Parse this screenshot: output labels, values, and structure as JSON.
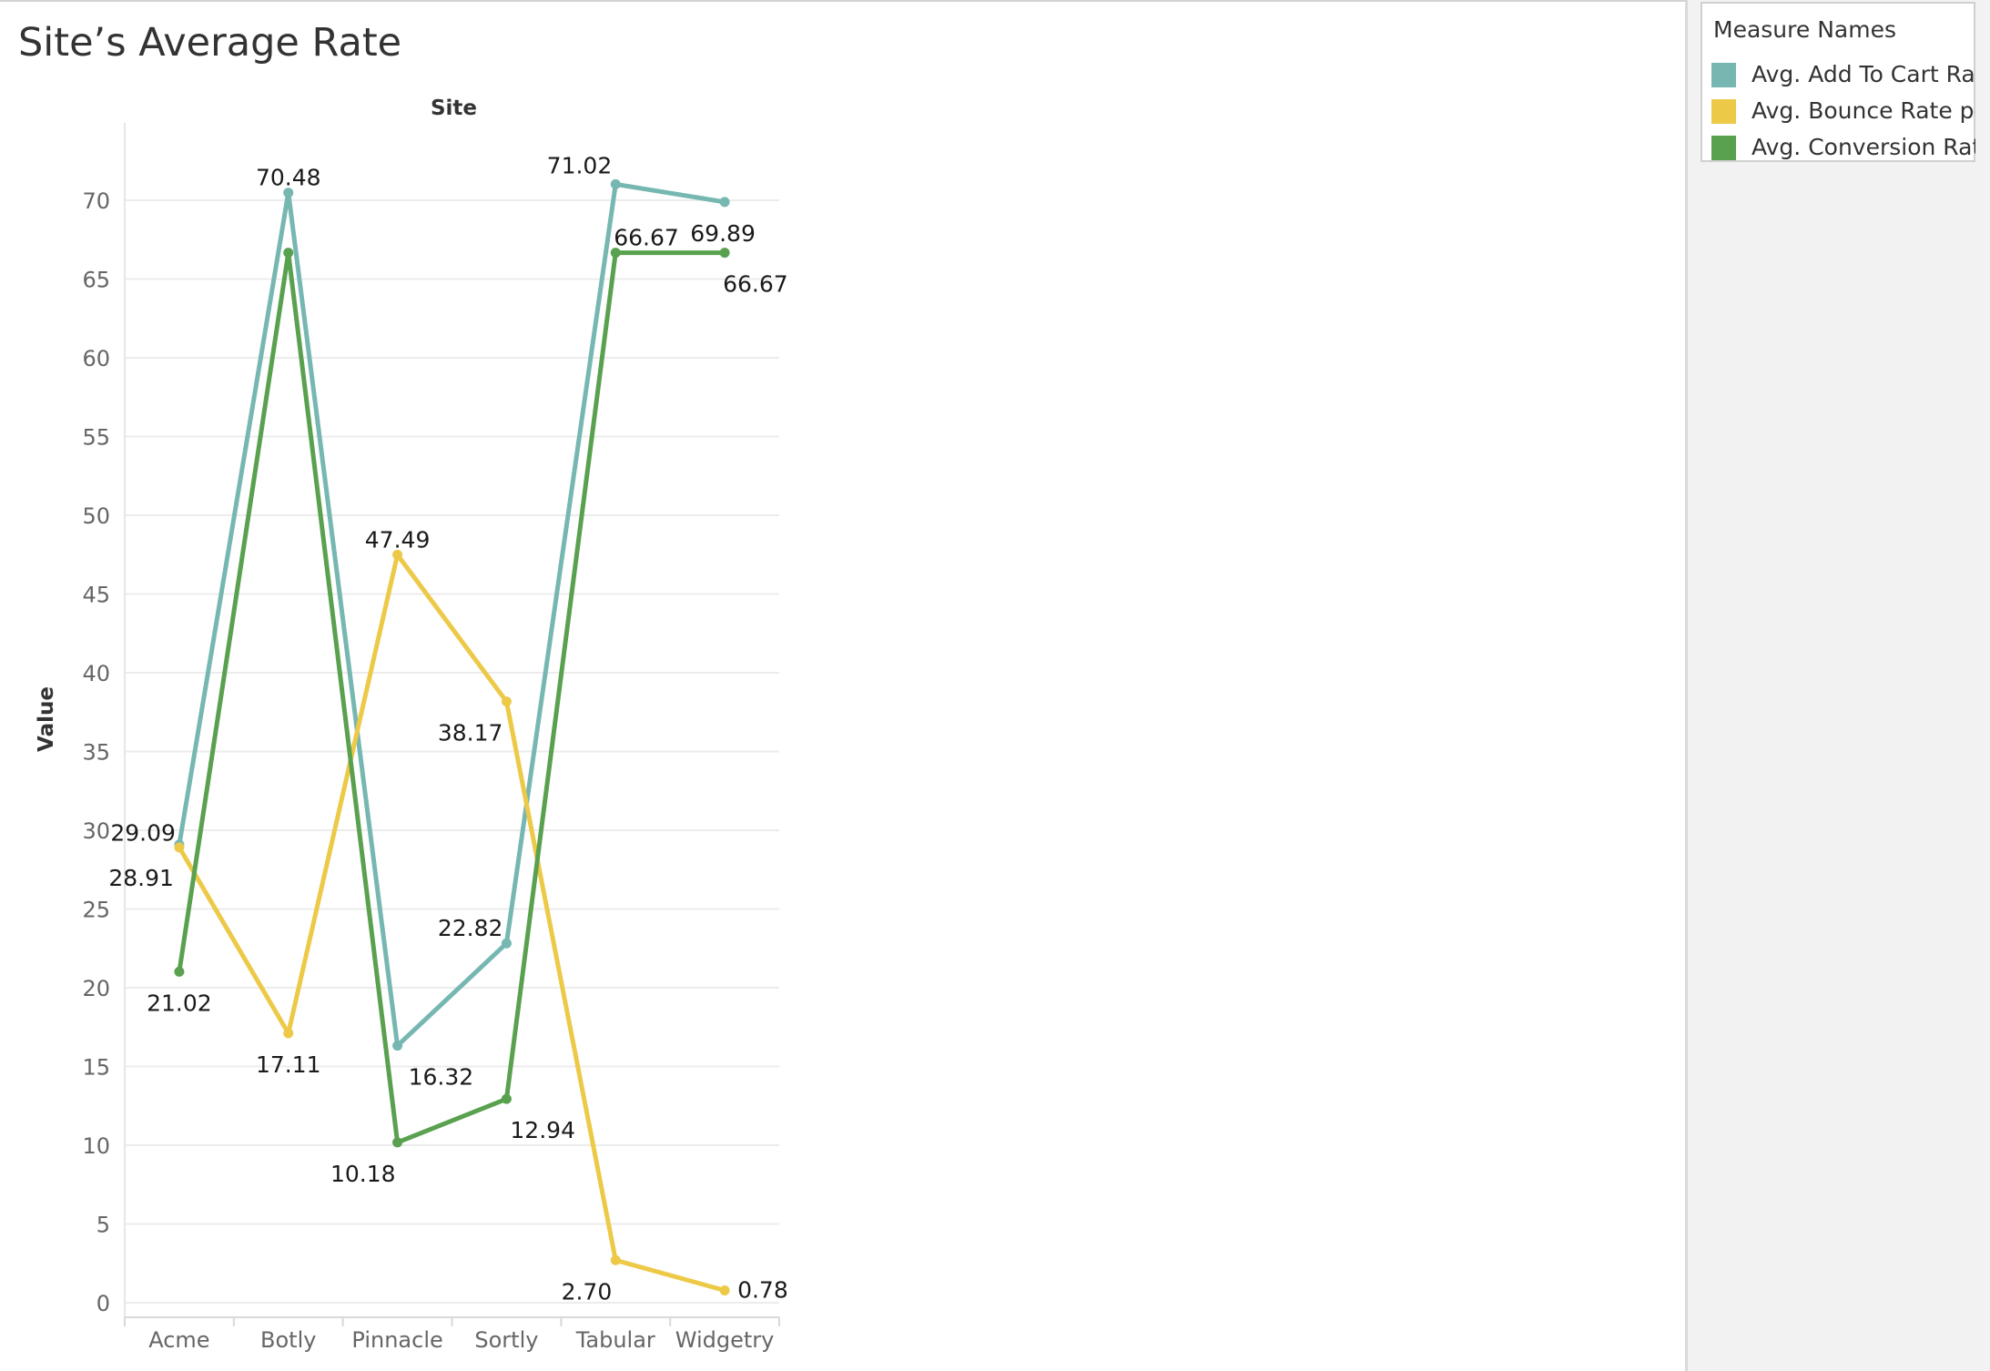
{
  "title": "Site’s Average Rate",
  "legend": {
    "title": "Measure Names",
    "items": [
      {
        "label": "Avg. Add To Cart Rat..",
        "color": "#76b7b2"
      },
      {
        "label": "Avg. Bounce Rate pe..",
        "color": "#edc948"
      },
      {
        "label": "Avg. Conversion Rat..",
        "color": "#59a14f"
      }
    ]
  },
  "chart_data": {
    "type": "line",
    "title": "Site’s Average Rate",
    "xlabel": "Site",
    "ylabel": "Value",
    "categories": [
      "Acme",
      "Botly",
      "Pinnacle",
      "Sortly",
      "Tabular",
      "Widgetry"
    ],
    "ylim": [
      0,
      73
    ],
    "yticks": [
      0,
      5,
      10,
      15,
      20,
      25,
      30,
      35,
      40,
      45,
      50,
      55,
      60,
      65,
      70
    ],
    "grid": true,
    "legend_position": "right",
    "series": [
      {
        "name": "Avg. Add To Cart Rat..",
        "color": "#76b7b2",
        "values": [
          29.09,
          70.48,
          16.32,
          22.82,
          71.02,
          69.89
        ],
        "labels": [
          "29.09",
          "70.48",
          "16.32",
          "22.82",
          "71.02",
          "69.89"
        ]
      },
      {
        "name": "Avg. Bounce Rate pe..",
        "color": "#edc948",
        "values": [
          28.91,
          17.11,
          47.49,
          38.17,
          2.7,
          0.78
        ],
        "labels": [
          "28.91",
          "17.11",
          "47.49",
          "38.17",
          "2.70",
          "0.78"
        ]
      },
      {
        "name": "Avg. Conversion Rat..",
        "color": "#59a14f",
        "values": [
          21.02,
          66.67,
          10.18,
          12.94,
          66.67,
          66.67
        ],
        "labels": [
          "21.02",
          "",
          "10.18",
          "12.94",
          "66.67",
          "66.67"
        ]
      }
    ]
  }
}
